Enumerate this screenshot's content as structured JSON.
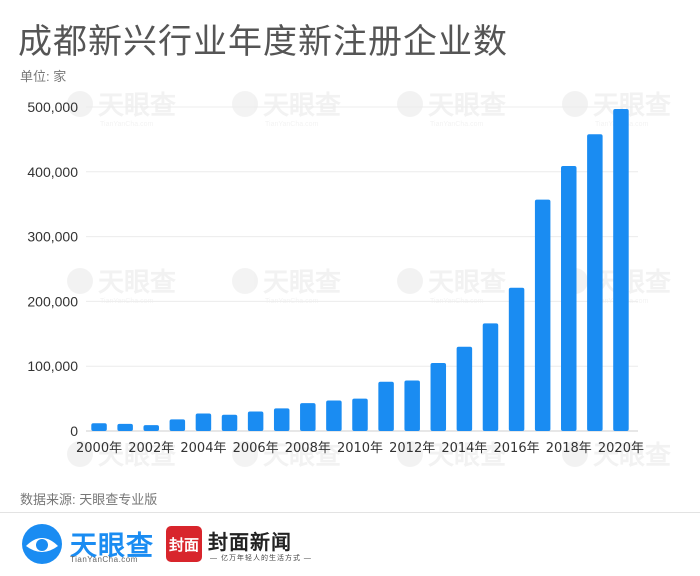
{
  "title": "成都新兴行业年度新注册企业数",
  "unit_label": "单位: 家",
  "source": "数据来源: 天眼查专业版",
  "watermark_text": "天眼查",
  "watermark_sub": "TianYanCha.com",
  "logos": {
    "tianyancha": {
      "name": "天眼查",
      "sub": "TianYanCha.com",
      "color": "#1a8cf2"
    },
    "fengmian": {
      "mark": "封面",
      "name": "封面新闻",
      "sub": "— 亿万年轻人的生活方式 —",
      "color": "#d8252c"
    }
  },
  "chart_data": {
    "type": "bar",
    "title": "成都新兴行业年度新注册企业数",
    "ylabel": "单位: 家",
    "ylim": [
      0,
      500000
    ],
    "yticks": [
      0,
      100000,
      200000,
      300000,
      400000,
      500000
    ],
    "ytick_labels": [
      "0",
      "100,000",
      "200,000",
      "300,000",
      "400,000",
      "500,000"
    ],
    "categories": [
      "2000年",
      "2001年",
      "2002年",
      "2003年",
      "2004年",
      "2005年",
      "2006年",
      "2007年",
      "2008年",
      "2009年",
      "2010年",
      "2011年",
      "2012年",
      "2013年",
      "2014年",
      "2015年",
      "2016年",
      "2017年",
      "2018年",
      "2019年",
      "2020年"
    ],
    "xtick_labels": [
      "2000年",
      "",
      "2002年",
      "",
      "2004年",
      "",
      "2006年",
      "",
      "2008年",
      "",
      "2010年",
      "",
      "2012年",
      "",
      "2014年",
      "",
      "2016年",
      "",
      "2018年",
      "",
      "2020年"
    ],
    "values": [
      12000,
      11000,
      9000,
      18000,
      27000,
      25000,
      30000,
      35000,
      43000,
      47000,
      50000,
      76000,
      78000,
      105000,
      130000,
      166000,
      221000,
      357000,
      409000,
      458000,
      497000
    ],
    "bar_color": "#1a8cf2",
    "grid": true
  }
}
